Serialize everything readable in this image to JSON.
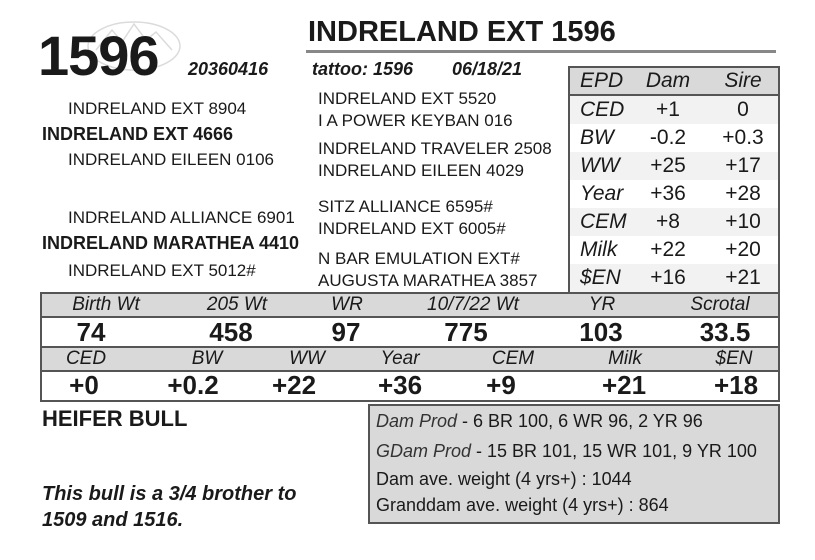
{
  "lot_number": "1596",
  "title": "INDRELAND EXT 1596",
  "registration": "20360416",
  "tattoo": "tattoo: 1596",
  "birth_date": "06/18/21",
  "pedigree": {
    "sire_side": {
      "grandsire": "INDRELAND EXT 8904",
      "sire": "INDRELAND EXT 4666",
      "granddam": "INDRELAND EILEEN 0106",
      "ggs1": "INDRELAND EXT 5520",
      "ggd1": "I A POWER KEYBAN 016",
      "ggs2": "INDRELAND TRAVELER 2508",
      "ggd2": "INDRELAND EILEEN 4029"
    },
    "dam_side": {
      "grandsire": "INDRELAND ALLIANCE 6901",
      "dam": "INDRELAND MARATHEA 4410",
      "granddam": "INDRELAND EXT 5012#",
      "ggs1": "SITZ ALLIANCE 6595#",
      "ggd1": "INDRELAND EXT 6005#",
      "ggs2": "N BAR EMULATION EXT#",
      "ggd2": "AUGUSTA MARATHEA 3857"
    }
  },
  "epd_table": {
    "headers": [
      "EPD",
      "Dam",
      "Sire"
    ],
    "rows": [
      {
        "label": "CED",
        "dam": "+1",
        "sire": "0"
      },
      {
        "label": "BW",
        "dam": "-0.2",
        "sire": "+0.3"
      },
      {
        "label": "WW",
        "dam": "+25",
        "sire": "+17"
      },
      {
        "label": "Year",
        "dam": "+36",
        "sire": "+28"
      },
      {
        "label": "CEM",
        "dam": "+8",
        "sire": "+10"
      },
      {
        "label": "Milk",
        "dam": "+22",
        "sire": "+20"
      },
      {
        "label": "$EN",
        "dam": "+16",
        "sire": "+21"
      }
    ]
  },
  "performance": {
    "headers": [
      "Birth Wt",
      "205 Wt",
      "WR",
      "10/7/22 Wt",
      "YR",
      "Scrotal"
    ],
    "values": [
      "74",
      "458",
      "97",
      "775",
      "103",
      "33.5"
    ]
  },
  "epds": {
    "headers": [
      "CED",
      "BW",
      "WW",
      "Year",
      "CEM",
      "Milk",
      "$EN"
    ],
    "values": [
      "+0",
      "+0.2",
      "+22",
      "+36",
      "+9",
      "+21",
      "+18"
    ]
  },
  "heifer_bull": "HEIFER BULL",
  "note": "This bull is a 3/4 brother to 1509 and 1516.",
  "production": {
    "dam_prod_label": "Dam Prod",
    "dam_prod_value": " - 6 BR 100, 6 WR 96, 2 YR 96",
    "gdam_prod_label": "GDam Prod",
    "gdam_prod_value": " - 15 BR 101, 15 WR 101, 9 YR 100",
    "dam_weight": "Dam ave. weight (4 yrs+) : 1044",
    "granddam_weight": "Granddam ave. weight (4 yrs+) : 864"
  }
}
